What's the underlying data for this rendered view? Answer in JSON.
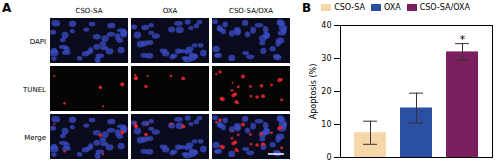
{
  "panel_a": {
    "label": "A",
    "columns": [
      "CSO-SA",
      "OXA",
      "CSO-SA/OXA"
    ],
    "rows": [
      "DAPI",
      "TUNEL",
      "Merge"
    ]
  },
  "chart_data": {
    "type": "bar",
    "label": "B",
    "y_label": "Apoptosis (%)",
    "categories": [
      "CSO-SA",
      "OXA",
      "CSO-SA/OXA"
    ],
    "values": [
      7.5,
      15,
      32
    ],
    "errors": [
      3.5,
      4.5,
      2.5
    ],
    "colors": [
      "#f6d7a9",
      "#2b4fa2",
      "#7b1f5e"
    ],
    "ylim": [
      0,
      40
    ],
    "yticks": [
      0,
      10,
      20,
      30,
      40
    ],
    "grid": false,
    "legend": "top",
    "tick_labels": "y",
    "annotations": [
      {
        "text": "*",
        "category": "CSO-SA/OXA"
      }
    ]
  }
}
